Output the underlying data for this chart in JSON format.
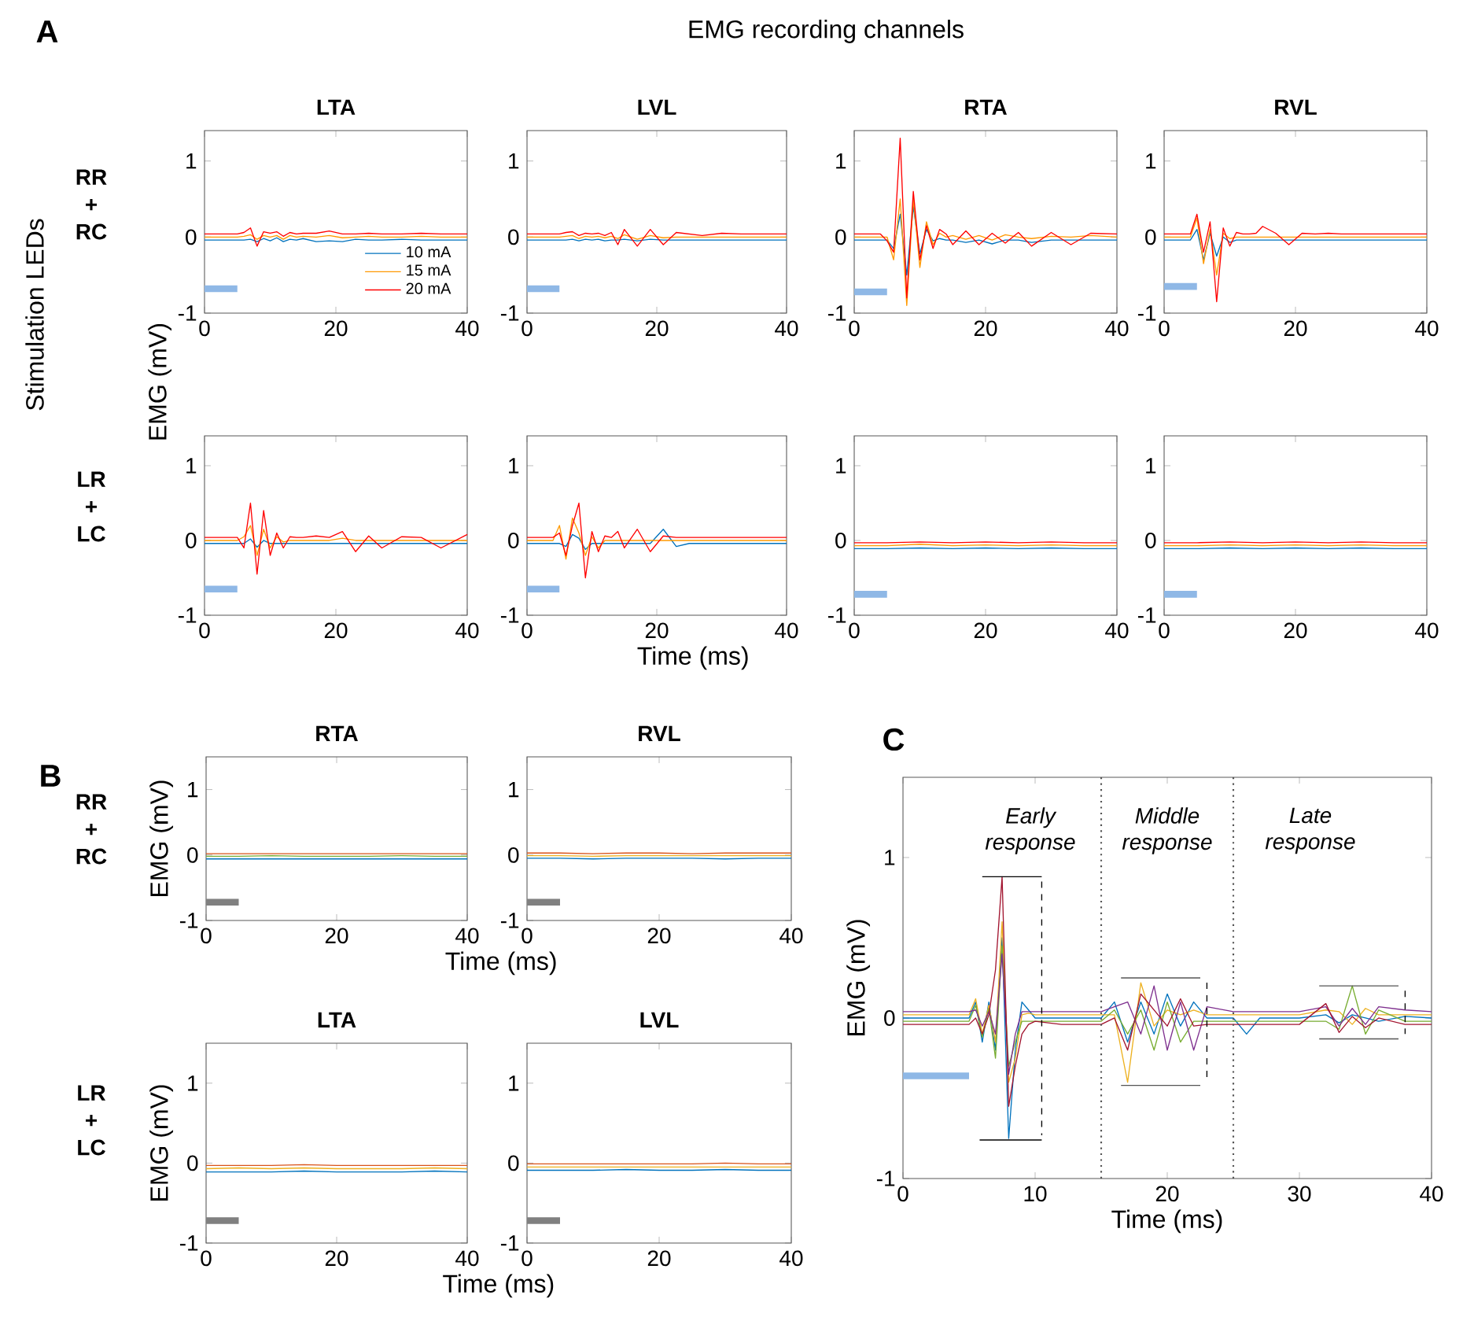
{
  "chart_data": [
    {
      "type": "line",
      "title": "LTA",
      "annotations": [
        "A",
        "EMG recording channels",
        "Stimulation LEDs",
        "RR + RC"
      ],
      "legend": "bottom right",
      "xlim": [
        0,
        40
      ],
      "ylim": [
        -1,
        1.4
      ],
      "xticks": [
        0,
        20,
        40
      ],
      "yticks": [
        -1,
        0,
        1
      ],
      "x": [
        0,
        4,
        5,
        6,
        7,
        8,
        9,
        10,
        11,
        12,
        13,
        14,
        15,
        17,
        19,
        21,
        23,
        25,
        27,
        30,
        33,
        36,
        40
      ],
      "series": [
        {
          "name": "10 mA",
          "color": "#0072bd",
          "values": [
            -0.04,
            -0.04,
            -0.04,
            -0.04,
            -0.03,
            -0.06,
            -0.02,
            -0.05,
            -0.01,
            -0.06,
            -0.03,
            -0.04,
            -0.02,
            -0.06,
            -0.05,
            -0.06,
            -0.03,
            -0.04,
            -0.04,
            -0.03,
            -0.04,
            -0.04,
            -0.04
          ]
        },
        {
          "name": "15 mA",
          "color": "#ff9900",
          "values": [
            0,
            0,
            0,
            0.01,
            0.03,
            -0.03,
            0.02,
            0,
            0.02,
            -0.03,
            0.02,
            0,
            0.01,
            0,
            0.02,
            -0.01,
            0,
            0.01,
            0,
            0,
            0.01,
            0,
            0
          ]
        },
        {
          "name": "20 mA",
          "color": "#ff0000",
          "values": [
            0.04,
            0.04,
            0.04,
            0.06,
            0.12,
            -0.12,
            0.07,
            0.05,
            0.07,
            0.01,
            0.06,
            0.04,
            0.05,
            0.05,
            0.08,
            0.04,
            0.04,
            0.05,
            0.04,
            0.04,
            0.05,
            0.04,
            0.04
          ]
        },
        {
          "color": "#8fb8e6",
          "x": [
            0,
            5
          ],
          "values": [
            -0.68,
            -0.68
          ]
        }
      ]
    },
    {
      "type": "line",
      "title": "LVL",
      "xlim": [
        0,
        40
      ],
      "ylim": [
        -1,
        1.4
      ],
      "xticks": [
        0,
        20,
        40
      ],
      "yticks": [
        -1,
        0,
        1
      ],
      "x": [
        0,
        4,
        5,
        6,
        7,
        8,
        9,
        10,
        11,
        12,
        13,
        14,
        15,
        17,
        19,
        21,
        23,
        25,
        27,
        30,
        33,
        36,
        40
      ],
      "series": [
        {
          "color": "#0072bd",
          "values": [
            -0.04,
            -0.04,
            -0.04,
            -0.04,
            -0.03,
            -0.05,
            -0.03,
            -0.04,
            -0.03,
            -0.05,
            -0.04,
            -0.04,
            -0.03,
            -0.05,
            -0.03,
            -0.04,
            -0.04,
            -0.04,
            -0.04,
            -0.04,
            -0.04,
            -0.04,
            -0.04
          ]
        },
        {
          "color": "#ff9900",
          "values": [
            0,
            0,
            0,
            0.01,
            0.02,
            -0.02,
            0.01,
            0,
            0.01,
            -0.01,
            0.01,
            -0.02,
            0.03,
            -0.03,
            0.02,
            -0.01,
            0,
            0,
            0,
            0,
            0,
            0,
            0
          ]
        },
        {
          "color": "#ff0000",
          "values": [
            0.04,
            0.04,
            0.04,
            0.06,
            0.07,
            0.02,
            0.05,
            0.04,
            0.05,
            0.02,
            0.06,
            -0.1,
            0.1,
            -0.12,
            0.1,
            -0.1,
            0.06,
            0.04,
            0.02,
            0.05,
            0.04,
            0.04,
            0.04
          ]
        },
        {
          "color": "#8fb8e6",
          "x": [
            0,
            5
          ],
          "values": [
            -0.68,
            -0.68
          ]
        }
      ]
    },
    {
      "type": "line",
      "title": "RTA",
      "xlim": [
        0,
        40
      ],
      "ylim": [
        -1,
        1.4
      ],
      "xticks": [
        0,
        20,
        40
      ],
      "yticks": [
        -1,
        0,
        1
      ],
      "x": [
        0,
        4,
        5,
        6,
        7,
        8,
        9,
        10,
        11,
        12,
        13,
        14,
        15,
        17,
        19,
        21,
        23,
        25,
        27,
        30,
        33,
        36,
        40
      ],
      "series": [
        {
          "color": "#0072bd",
          "values": [
            -0.04,
            -0.04,
            -0.04,
            -0.15,
            0.3,
            -0.5,
            0.4,
            -0.22,
            0.1,
            -0.05,
            -0.02,
            -0.04,
            -0.04,
            -0.07,
            -0.04,
            -0.09,
            -0.04,
            -0.04,
            -0.07,
            -0.04,
            -0.04,
            -0.04,
            -0.04
          ]
        },
        {
          "color": "#ff9900",
          "values": [
            0,
            0,
            0,
            -0.3,
            0.5,
            -0.9,
            0.5,
            -0.4,
            0.2,
            -0.1,
            0.05,
            0,
            0.02,
            -0.03,
            0.02,
            -0.04,
            0.03,
            0,
            -0.02,
            0.01,
            0,
            0.02,
            0
          ]
        },
        {
          "color": "#ff0000",
          "values": [
            0.04,
            0.04,
            -0.05,
            -0.2,
            1.3,
            -0.8,
            0.6,
            -0.3,
            0.15,
            -0.15,
            0.1,
            0.04,
            -0.1,
            0.08,
            -0.1,
            0.05,
            -0.08,
            0.06,
            -0.12,
            0.06,
            -0.1,
            0.05,
            0.04
          ]
        },
        {
          "color": "#8fb8e6",
          "x": [
            0,
            5
          ],
          "values": [
            -0.72,
            -0.72
          ]
        }
      ]
    },
    {
      "type": "line",
      "title": "RVL",
      "xlim": [
        0,
        40
      ],
      "ylim": [
        -1,
        1.4
      ],
      "xticks": [
        0,
        20,
        40
      ],
      "yticks": [
        -1,
        0,
        1
      ],
      "x": [
        0,
        4,
        5,
        6,
        7,
        8,
        9,
        10,
        11,
        12,
        13,
        14,
        15,
        17,
        19,
        21,
        23,
        25,
        27,
        30,
        33,
        36,
        40
      ],
      "series": [
        {
          "color": "#0072bd",
          "values": [
            -0.04,
            -0.04,
            0.1,
            -0.3,
            0.05,
            -0.25,
            0,
            -0.07,
            -0.04,
            -0.04,
            -0.04,
            -0.04,
            -0.04,
            -0.04,
            -0.04,
            -0.04,
            -0.04,
            -0.04,
            -0.04,
            -0.04,
            -0.04,
            -0.04,
            -0.04
          ]
        },
        {
          "color": "#ff9900",
          "values": [
            0,
            0,
            0.25,
            -0.35,
            0.1,
            -0.5,
            0.05,
            -0.02,
            0,
            0,
            0,
            0,
            0,
            0,
            0,
            0,
            0,
            0,
            0,
            0,
            0,
            0,
            0
          ]
        },
        {
          "color": "#ff0000",
          "values": [
            0.04,
            0.04,
            0.3,
            -0.2,
            0.2,
            -0.85,
            0.12,
            -0.12,
            0.06,
            0.04,
            0.04,
            0.05,
            0.14,
            0.05,
            -0.1,
            0.05,
            0.04,
            0.05,
            0.04,
            0.04,
            0.04,
            0.04,
            0.04
          ]
        },
        {
          "color": "#8fb8e6",
          "x": [
            0,
            5
          ],
          "values": [
            -0.65,
            -0.65
          ]
        }
      ]
    },
    {
      "type": "line",
      "ylabel": "EMG (mV)",
      "annotations": [
        "LR + LC"
      ],
      "xlim": [
        0,
        40
      ],
      "ylim": [
        -1,
        1.4
      ],
      "xticks": [
        0,
        20,
        40
      ],
      "yticks": [
        -1,
        0,
        1
      ],
      "x": [
        0,
        4,
        5,
        6,
        7,
        8,
        9,
        10,
        11,
        12,
        13,
        14,
        15,
        17,
        19,
        21,
        23,
        25,
        27,
        30,
        33,
        36,
        40
      ],
      "series": [
        {
          "color": "#0072bd",
          "values": [
            -0.04,
            -0.04,
            -0.04,
            -0.04,
            0.02,
            -0.09,
            0,
            -0.04,
            -0.04,
            -0.04,
            -0.04,
            -0.04,
            -0.04,
            -0.04,
            -0.04,
            -0.04,
            -0.04,
            -0.04,
            -0.04,
            -0.04,
            -0.04,
            -0.04,
            -0.04
          ]
        },
        {
          "color": "#ff9900",
          "values": [
            0,
            0,
            0,
            0.05,
            0.2,
            -0.2,
            0.15,
            -0.1,
            0.05,
            -0.02,
            0,
            0,
            0,
            0,
            0,
            0.03,
            0,
            0,
            0,
            0,
            0,
            0,
            0
          ]
        },
        {
          "color": "#ff0000",
          "values": [
            0.04,
            0.04,
            0.04,
            -0.1,
            0.5,
            -0.45,
            0.4,
            -0.2,
            0.1,
            -0.1,
            0.05,
            0.04,
            0.04,
            0.06,
            0.04,
            0.12,
            -0.15,
            0.06,
            -0.1,
            0.05,
            0.04,
            -0.1,
            0.08
          ]
        },
        {
          "color": "#8fb8e6",
          "x": [
            0,
            5
          ],
          "values": [
            -0.65,
            -0.65
          ]
        }
      ]
    },
    {
      "type": "line",
      "xlabel": "Time (ms)",
      "xlim": [
        0,
        40
      ],
      "ylim": [
        -1,
        1.4
      ],
      "xticks": [
        0,
        20,
        40
      ],
      "yticks": [
        -1,
        0,
        1
      ],
      "x": [
        0,
        4,
        5,
        6,
        7,
        8,
        9,
        10,
        11,
        12,
        13,
        14,
        15,
        17,
        19,
        21,
        23,
        25,
        27,
        30,
        33,
        36,
        40
      ],
      "series": [
        {
          "color": "#0072bd",
          "values": [
            -0.04,
            -0.04,
            -0.04,
            -0.08,
            0.08,
            0.03,
            -0.12,
            -0.04,
            -0.04,
            -0.04,
            -0.04,
            -0.04,
            -0.04,
            -0.04,
            -0.04,
            0.15,
            -0.08,
            -0.04,
            -0.04,
            -0.04,
            -0.04,
            -0.04,
            -0.04
          ]
        },
        {
          "color": "#ff9900",
          "values": [
            0,
            0,
            0.2,
            -0.25,
            0.3,
            0.1,
            -0.2,
            0.05,
            -0.1,
            0,
            0,
            0,
            0,
            0,
            0,
            0,
            0,
            0,
            0,
            0,
            0,
            0,
            0
          ]
        },
        {
          "color": "#ff0000",
          "values": [
            0.04,
            0.04,
            0.1,
            -0.2,
            0.2,
            0.5,
            -0.5,
            0.12,
            -0.15,
            0.06,
            0.04,
            0.12,
            -0.1,
            0.15,
            -0.15,
            0.06,
            0.04,
            0.04,
            0.04,
            0.04,
            0.04,
            0.04,
            0.04
          ]
        },
        {
          "color": "#8fb8e6",
          "x": [
            0,
            5
          ],
          "values": [
            -0.65,
            -0.65
          ]
        }
      ]
    },
    {
      "type": "line",
      "xlim": [
        0,
        40
      ],
      "ylim": [
        -1,
        1.4
      ],
      "xticks": [
        0,
        20,
        40
      ],
      "yticks": [
        -1,
        0,
        1
      ],
      "x": [
        0,
        5,
        10,
        15,
        20,
        25,
        30,
        35,
        40
      ],
      "series": [
        {
          "color": "#0072bd",
          "values": [
            -0.11,
            -0.11,
            -0.1,
            -0.11,
            -0.1,
            -0.11,
            -0.1,
            -0.11,
            -0.11
          ]
        },
        {
          "color": "#ff9900",
          "values": [
            -0.07,
            -0.07,
            -0.05,
            -0.07,
            -0.06,
            -0.07,
            -0.06,
            -0.07,
            -0.07
          ]
        },
        {
          "color": "#ff0000",
          "values": [
            -0.03,
            -0.03,
            -0.02,
            -0.03,
            -0.02,
            -0.03,
            -0.02,
            -0.03,
            -0.03
          ]
        },
        {
          "color": "#8fb8e6",
          "x": [
            0,
            5
          ],
          "values": [
            -0.72,
            -0.72
          ]
        }
      ]
    },
    {
      "type": "line",
      "xlim": [
        0,
        40
      ],
      "ylim": [
        -1,
        1.4
      ],
      "xticks": [
        0,
        20,
        40
      ],
      "yticks": [
        -1,
        0,
        1
      ],
      "x": [
        0,
        5,
        10,
        15,
        20,
        25,
        30,
        35,
        40
      ],
      "series": [
        {
          "color": "#0072bd",
          "values": [
            -0.11,
            -0.11,
            -0.1,
            -0.11,
            -0.1,
            -0.11,
            -0.1,
            -0.11,
            -0.11
          ]
        },
        {
          "color": "#ff9900",
          "values": [
            -0.07,
            -0.07,
            -0.06,
            -0.07,
            -0.06,
            -0.07,
            -0.06,
            -0.07,
            -0.07
          ]
        },
        {
          "color": "#ff0000",
          "values": [
            -0.03,
            -0.03,
            -0.02,
            -0.03,
            -0.02,
            -0.03,
            -0.02,
            -0.03,
            -0.03
          ]
        },
        {
          "color": "#8fb8e6",
          "x": [
            0,
            5
          ],
          "values": [
            -0.72,
            -0.72
          ]
        }
      ]
    },
    {
      "type": "line",
      "title": "RTA",
      "xlabel": "Time (ms)",
      "ylabel": "EMG (mV)",
      "annotations": [
        "B",
        "RR + RC"
      ],
      "xlim": [
        0,
        40
      ],
      "ylim": [
        -1,
        1.5
      ],
      "xticks": [
        0,
        20,
        40
      ],
      "yticks": [
        -1,
        0,
        1
      ],
      "x": [
        0,
        5,
        10,
        15,
        20,
        25,
        30,
        35,
        40
      ],
      "series": [
        {
          "color": "#0072bd",
          "values": [
            -0.06,
            -0.06,
            -0.06,
            -0.06,
            -0.06,
            -0.06,
            -0.06,
            -0.06,
            -0.06
          ]
        },
        {
          "color": "#77ac30",
          "values": [
            -0.02,
            -0.02,
            -0.01,
            -0.02,
            -0.02,
            -0.02,
            -0.01,
            -0.02,
            -0.02
          ]
        },
        {
          "color": "#d95319",
          "values": [
            0.02,
            0.02,
            0.02,
            0.02,
            0.02,
            0.02,
            0.02,
            0.02,
            0.02
          ]
        },
        {
          "color": "#808080",
          "x": [
            0,
            5
          ],
          "values": [
            -0.72,
            -0.72
          ]
        }
      ]
    },
    {
      "type": "line",
      "title": "RVL",
      "xlim": [
        0,
        40
      ],
      "ylim": [
        -1,
        1.5
      ],
      "xticks": [
        0,
        20,
        40
      ],
      "yticks": [
        -1,
        0,
        1
      ],
      "x": [
        0,
        5,
        10,
        15,
        20,
        25,
        30,
        35,
        40
      ],
      "series": [
        {
          "color": "#0072bd",
          "values": [
            -0.05,
            -0.05,
            -0.06,
            -0.05,
            -0.05,
            -0.05,
            -0.06,
            -0.05,
            -0.05
          ]
        },
        {
          "color": "#edb120",
          "values": [
            -0.01,
            -0.01,
            -0.02,
            -0.01,
            -0.01,
            -0.01,
            -0.01,
            -0.01,
            -0.01
          ]
        },
        {
          "color": "#d95319",
          "values": [
            0.03,
            0.03,
            0.02,
            0.03,
            0.03,
            0.02,
            0.03,
            0.03,
            0.03
          ]
        },
        {
          "color": "#808080",
          "x": [
            0,
            5
          ],
          "values": [
            -0.72,
            -0.72
          ]
        }
      ]
    },
    {
      "type": "line",
      "title": "LTA",
      "xlabel": "Time (ms)",
      "ylabel": "EMG (mV)",
      "annotations": [
        "LR + LC"
      ],
      "xlim": [
        0,
        40
      ],
      "ylim": [
        -1,
        1.5
      ],
      "xticks": [
        0,
        20,
        40
      ],
      "yticks": [
        -1,
        0,
        1
      ],
      "x": [
        0,
        5,
        10,
        15,
        20,
        25,
        30,
        35,
        40
      ],
      "series": [
        {
          "color": "#0072bd",
          "values": [
            -0.11,
            -0.11,
            -0.11,
            -0.1,
            -0.11,
            -0.11,
            -0.11,
            -0.1,
            -0.11
          ]
        },
        {
          "color": "#edb120",
          "values": [
            -0.07,
            -0.06,
            -0.07,
            -0.06,
            -0.07,
            -0.07,
            -0.07,
            -0.06,
            -0.07
          ]
        },
        {
          "color": "#d95319",
          "values": [
            -0.03,
            -0.03,
            -0.03,
            -0.02,
            -0.03,
            -0.03,
            -0.03,
            -0.03,
            -0.03
          ]
        },
        {
          "color": "#808080",
          "x": [
            0,
            5
          ],
          "values": [
            -0.72,
            -0.72
          ]
        }
      ]
    },
    {
      "type": "line",
      "title": "LVL",
      "xlim": [
        0,
        40
      ],
      "ylim": [
        -1,
        1.5
      ],
      "xticks": [
        0,
        20,
        40
      ],
      "yticks": [
        -1,
        0,
        1
      ],
      "x": [
        0,
        5,
        10,
        15,
        20,
        25,
        30,
        35,
        40
      ],
      "series": [
        {
          "color": "#0072bd",
          "values": [
            -0.09,
            -0.09,
            -0.09,
            -0.08,
            -0.09,
            -0.09,
            -0.08,
            -0.09,
            -0.09
          ]
        },
        {
          "color": "#edb120",
          "values": [
            -0.05,
            -0.05,
            -0.05,
            -0.05,
            -0.05,
            -0.05,
            -0.05,
            -0.05,
            -0.05
          ]
        },
        {
          "color": "#d95319",
          "values": [
            -0.01,
            -0.01,
            -0.01,
            -0.01,
            -0.01,
            -0.01,
            0,
            -0.01,
            -0.01
          ]
        },
        {
          "color": "#808080",
          "x": [
            0,
            5
          ],
          "values": [
            -0.72,
            -0.72
          ]
        }
      ]
    },
    {
      "type": "line",
      "xlabel": "Time (ms)",
      "ylabel": "EMG (mV)",
      "annotations": [
        "C",
        "Early response",
        "Middle response",
        "Late response"
      ],
      "xlim": [
        0,
        40
      ],
      "ylim": [
        -1,
        1.5
      ],
      "xticks": [
        0,
        10,
        20,
        30,
        40
      ],
      "yticks": [
        -1,
        0,
        1
      ],
      "ref_lines": [
        {
          "axis": "x",
          "value": 15,
          "line_style": "dotted",
          "color": "#555555"
        },
        {
          "axis": "x",
          "value": 25,
          "line_style": "dotted",
          "color": "#555555"
        }
      ],
      "x": [
        0,
        5,
        5.5,
        6,
        6.5,
        7,
        7.5,
        8,
        8.5,
        9,
        9.5,
        10,
        12,
        15,
        16,
        17,
        18,
        19,
        20,
        21,
        22,
        23,
        25,
        26,
        27,
        30,
        32,
        33,
        34,
        35,
        36,
        38,
        40
      ],
      "series": [
        {
          "color": "#0072bd",
          "values": [
            0,
            0,
            0.1,
            -0.15,
            0.1,
            -0.2,
            0.5,
            -0.75,
            -0.2,
            0.1,
            0.05,
            0,
            0,
            0,
            0.1,
            -0.15,
            0.1,
            -0.1,
            0.15,
            -0.05,
            0.1,
            0,
            0,
            -0.1,
            0,
            0,
            0.02,
            -0.03,
            0.02,
            0,
            -0.02,
            0.01,
            0
          ]
        },
        {
          "color": "#edb120",
          "values": [
            0.02,
            0.02,
            0.12,
            -0.1,
            0.08,
            -0.15,
            0.6,
            -0.4,
            -0.25,
            0.02,
            0.03,
            0.02,
            0.02,
            0.02,
            0.02,
            -0.4,
            0.22,
            -0.05,
            0.05,
            0.02,
            0.05,
            0.02,
            0.02,
            0.02,
            0.02,
            0.02,
            0.05,
            0.04,
            -0.04,
            0.06,
            0.02,
            0.02,
            0.02
          ]
        },
        {
          "color": "#77ac30",
          "values": [
            -0.02,
            -0.02,
            0.08,
            -0.12,
            0.06,
            -0.25,
            0.45,
            -0.3,
            -0.15,
            -0.02,
            -0.02,
            -0.02,
            -0.02,
            -0.02,
            0.05,
            -0.1,
            0.05,
            -0.2,
            0.1,
            -0.15,
            -0.02,
            -0.02,
            -0.02,
            -0.02,
            -0.02,
            -0.02,
            -0.02,
            -0.07,
            0.2,
            -0.1,
            0.05,
            -0.02,
            -0.02
          ]
        },
        {
          "color": "#7e2f8e",
          "values": [
            0.04,
            0.04,
            0.05,
            -0.05,
            0.04,
            -0.1,
            0.4,
            -0.35,
            -0.1,
            0.04,
            0.04,
            0.04,
            0.04,
            0.04,
            0.07,
            0.1,
            -0.1,
            0.2,
            -0.2,
            0.1,
            -0.2,
            0.07,
            0.04,
            0.04,
            0.04,
            0.04,
            0.07,
            -0.05,
            0.06,
            -0.04,
            0.07,
            0.05,
            0.04
          ]
        },
        {
          "color": "#a2142f",
          "values": [
            -0.04,
            -0.04,
            0,
            -0.1,
            0.02,
            0.3,
            0.88,
            -0.55,
            -0.3,
            -0.1,
            -0.04,
            -0.02,
            -0.04,
            -0.04,
            0,
            -0.2,
            0.15,
            0.05,
            -0.05,
            0.12,
            -0.05,
            -0.04,
            -0.04,
            -0.04,
            -0.04,
            -0.04,
            0.09,
            -0.09,
            0.01,
            -0.06,
            0,
            -0.04,
            -0.04
          ]
        },
        {
          "color": "#8fb8e6",
          "x": [
            0,
            5
          ],
          "values": [
            -0.36,
            -0.36
          ]
        },
        {
          "color": "#000000",
          "x": [
            6,
            10.5
          ],
          "values": [
            0.88,
            0.88
          ]
        },
        {
          "color": "#000000",
          "x": [
            5.8,
            10.5
          ],
          "values": [
            -0.76,
            -0.76
          ]
        },
        {
          "color": "#000000",
          "line_style": "dashed",
          "x": [
            10.5,
            10.5
          ],
          "values": [
            0.85,
            -0.73
          ]
        },
        {
          "color": "#555555",
          "x": [
            16.5,
            22.5
          ],
          "values": [
            0.25,
            0.25
          ]
        },
        {
          "color": "#555555",
          "x": [
            16.5,
            22.5
          ],
          "values": [
            -0.42,
            -0.42
          ]
        },
        {
          "color": "#000000",
          "line_style": "dashed",
          "x": [
            23,
            23
          ],
          "values": [
            0.22,
            -0.39
          ]
        },
        {
          "color": "#555555",
          "x": [
            31.5,
            37.5
          ],
          "values": [
            0.2,
            0.2
          ]
        },
        {
          "color": "#555555",
          "x": [
            31.5,
            37.5
          ],
          "values": [
            -0.13,
            -0.13
          ]
        },
        {
          "color": "#000000",
          "line_style": "dashed",
          "x": [
            38,
            38
          ],
          "values": [
            0.17,
            -0.1
          ]
        }
      ]
    }
  ]
}
